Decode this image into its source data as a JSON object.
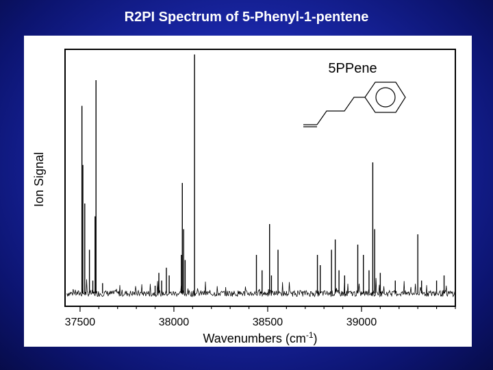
{
  "slide": {
    "title": "R2PI Spectrum of 5-Phenyl-1-pentene"
  },
  "chart_data": {
    "type": "line",
    "title": "",
    "xlabel": "Wavenumbers (cm-1)",
    "xlabel_parts": {
      "main": "Wavenumbers (cm",
      "sup": "-1",
      "close": ")"
    },
    "ylabel": "Ion Signal",
    "xlim": [
      37420,
      39500
    ],
    "ylim": [
      0,
      1
    ],
    "x_ticks": [
      37500,
      38000,
      38500,
      39000
    ],
    "y_ticks_labeled": false,
    "grid": false,
    "legend": "none",
    "annotation": "5PPene",
    "baseline": 0.05,
    "noise": 0.012,
    "peaks": [
      {
        "x": 37510,
        "y": 0.78
      },
      {
        "x": 37515,
        "y": 0.55
      },
      {
        "x": 37525,
        "y": 0.4
      },
      {
        "x": 37550,
        "y": 0.22
      },
      {
        "x": 37568,
        "y": 0.1
      },
      {
        "x": 37580,
        "y": 0.35
      },
      {
        "x": 37585,
        "y": 0.88
      },
      {
        "x": 37620,
        "y": 0.09
      },
      {
        "x": 37900,
        "y": 0.08
      },
      {
        "x": 37920,
        "y": 0.13
      },
      {
        "x": 37935,
        "y": 0.1
      },
      {
        "x": 37960,
        "y": 0.15
      },
      {
        "x": 37975,
        "y": 0.12
      },
      {
        "x": 38040,
        "y": 0.2
      },
      {
        "x": 38045,
        "y": 0.48
      },
      {
        "x": 38052,
        "y": 0.3
      },
      {
        "x": 38060,
        "y": 0.18
      },
      {
        "x": 38110,
        "y": 0.98
      },
      {
        "x": 38440,
        "y": 0.2
      },
      {
        "x": 38470,
        "y": 0.14
      },
      {
        "x": 38510,
        "y": 0.32
      },
      {
        "x": 38520,
        "y": 0.12
      },
      {
        "x": 38555,
        "y": 0.22
      },
      {
        "x": 38765,
        "y": 0.2
      },
      {
        "x": 38780,
        "y": 0.16
      },
      {
        "x": 38840,
        "y": 0.22
      },
      {
        "x": 38860,
        "y": 0.26
      },
      {
        "x": 38880,
        "y": 0.14
      },
      {
        "x": 38910,
        "y": 0.12
      },
      {
        "x": 38980,
        "y": 0.24
      },
      {
        "x": 39010,
        "y": 0.2
      },
      {
        "x": 39040,
        "y": 0.14
      },
      {
        "x": 39060,
        "y": 0.56
      },
      {
        "x": 39070,
        "y": 0.3
      },
      {
        "x": 39100,
        "y": 0.13
      },
      {
        "x": 39180,
        "y": 0.1
      },
      {
        "x": 39300,
        "y": 0.28
      },
      {
        "x": 39320,
        "y": 0.1
      },
      {
        "x": 39400,
        "y": 0.1
      },
      {
        "x": 39440,
        "y": 0.12
      }
    ],
    "colors": {
      "trace": "#000000",
      "axes": "#000000"
    }
  }
}
